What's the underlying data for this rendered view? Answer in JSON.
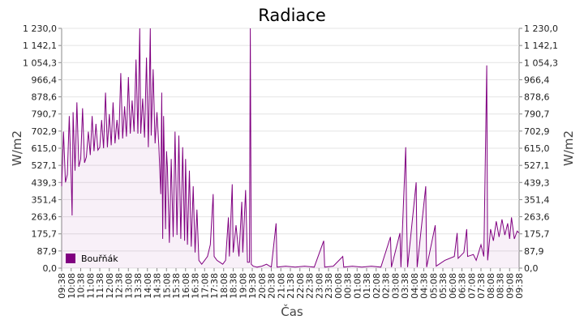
{
  "chart_data": {
    "type": "area",
    "title": "Radiace",
    "xlabel": "Čas",
    "ylabel": "W/m2",
    "ylabel_right": "W/m2",
    "ylim": [
      0,
      1230
    ],
    "yticks": [
      "1 230,0",
      "1 142,1",
      "1 054,3",
      "966,4",
      "878,6",
      "790,7",
      "702,9",
      "615,0",
      "527,1",
      "439,3",
      "351,4",
      "263,6",
      "175,7",
      "87,9",
      "0,0"
    ],
    "ytick_values": [
      1230,
      1142.1,
      1054.3,
      966.4,
      878.6,
      790.7,
      702.9,
      615.0,
      527.1,
      439.3,
      351.4,
      263.6,
      175.7,
      87.9,
      0
    ],
    "x_tick_labels": [
      "09:38",
      "10:08",
      "10:38",
      "11:08",
      "11:38",
      "12:08",
      "12:38",
      "13:08",
      "13:38",
      "14:08",
      "14:38",
      "15:08",
      "15:38",
      "16:08",
      "16:38",
      "17:08",
      "17:38",
      "18:08",
      "18:38",
      "19:08",
      "19:38",
      "20:08",
      "20:38",
      "21:08",
      "21:38",
      "22:08",
      "22:38",
      "23:08",
      "23:38",
      "00:08",
      "00:38",
      "01:08",
      "01:38",
      "02:08",
      "02:38",
      "03:08",
      "03:38",
      "04:08",
      "04:38",
      "05:08",
      "05:38",
      "06:08",
      "06:38",
      "07:08",
      "07:38",
      "08:08",
      "08:38",
      "09:08",
      "09:38"
    ],
    "grid": true,
    "legend_position": "bottom-left",
    "series": [
      {
        "name": "Bouřňák",
        "color": "#800080",
        "points": [
          [
            0,
            420
          ],
          [
            0.2,
            700
          ],
          [
            0.4,
            440
          ],
          [
            0.6,
            480
          ],
          [
            0.8,
            780
          ],
          [
            1,
            460
          ],
          [
            1.1,
            270
          ],
          [
            1.2,
            800
          ],
          [
            1.4,
            500
          ],
          [
            1.6,
            850
          ],
          [
            1.8,
            520
          ],
          [
            2,
            560
          ],
          [
            2.2,
            820
          ],
          [
            2.4,
            540
          ],
          [
            2.6,
            570
          ],
          [
            2.8,
            700
          ],
          [
            3,
            580
          ],
          [
            3.2,
            780
          ],
          [
            3.4,
            600
          ],
          [
            3.6,
            740
          ],
          [
            3.8,
            605
          ],
          [
            4,
            620
          ],
          [
            4.2,
            760
          ],
          [
            4.4,
            615
          ],
          [
            4.6,
            900
          ],
          [
            4.8,
            620
          ],
          [
            5,
            790
          ],
          [
            5.2,
            630
          ],
          [
            5.4,
            850
          ],
          [
            5.6,
            640
          ],
          [
            5.8,
            760
          ],
          [
            6,
            660
          ],
          [
            6.2,
            1000
          ],
          [
            6.4,
            665
          ],
          [
            6.6,
            830
          ],
          [
            6.8,
            675
          ],
          [
            7,
            980
          ],
          [
            7.2,
            690
          ],
          [
            7.4,
            860
          ],
          [
            7.6,
            700
          ],
          [
            7.8,
            1070
          ],
          [
            8,
            690
          ],
          [
            8.2,
            1230
          ],
          [
            8.3,
            690
          ],
          [
            8.5,
            870
          ],
          [
            8.7,
            670
          ],
          [
            8.9,
            1080
          ],
          [
            9.1,
            620
          ],
          [
            9.3,
            1230
          ],
          [
            9.4,
            680
          ],
          [
            9.6,
            1020
          ],
          [
            9.8,
            640
          ],
          [
            10,
            800
          ],
          [
            10.2,
            630
          ],
          [
            10.4,
            380
          ],
          [
            10.5,
            900
          ],
          [
            10.6,
            150
          ],
          [
            10.7,
            780
          ],
          [
            10.9,
            200
          ],
          [
            11,
            600
          ],
          [
            11.1,
            520
          ],
          [
            11.3,
            130
          ],
          [
            11.5,
            560
          ],
          [
            11.7,
            160
          ],
          [
            11.9,
            700
          ],
          [
            12.1,
            170
          ],
          [
            12.3,
            680
          ],
          [
            12.5,
            150
          ],
          [
            12.7,
            620
          ],
          [
            12.9,
            140
          ],
          [
            13,
            560
          ],
          [
            13.2,
            120
          ],
          [
            13.4,
            500
          ],
          [
            13.6,
            110
          ],
          [
            13.8,
            420
          ],
          [
            14,
            80
          ],
          [
            14.2,
            300
          ],
          [
            14.4,
            40
          ],
          [
            14.7,
            20
          ],
          [
            15,
            40
          ],
          [
            15.3,
            60
          ],
          [
            15.6,
            120
          ],
          [
            15.9,
            380
          ],
          [
            16,
            60
          ],
          [
            16.3,
            40
          ],
          [
            16.6,
            30
          ],
          [
            16.9,
            20
          ],
          [
            17.2,
            40
          ],
          [
            17.5,
            260
          ],
          [
            17.6,
            60
          ],
          [
            17.9,
            430
          ],
          [
            18,
            80
          ],
          [
            18.3,
            220
          ],
          [
            18.6,
            60
          ],
          [
            18.9,
            340
          ],
          [
            19,
            80
          ],
          [
            19.3,
            400
          ],
          [
            19.5,
            30
          ],
          [
            19.7,
            30
          ],
          [
            19.8,
            1230
          ],
          [
            19.9,
            20
          ],
          [
            20.1,
            10
          ],
          [
            20.5,
            5
          ],
          [
            21,
            10
          ],
          [
            21.5,
            20
          ],
          [
            22,
            5
          ],
          [
            22.5,
            230
          ],
          [
            22.6,
            5
          ],
          [
            23.5,
            10
          ],
          [
            24.5,
            5
          ],
          [
            25.5,
            10
          ],
          [
            26.5,
            5
          ],
          [
            27.5,
            140
          ],
          [
            27.6,
            5
          ],
          [
            28.5,
            10
          ],
          [
            29.5,
            60
          ],
          [
            29.6,
            5
          ],
          [
            30.5,
            10
          ],
          [
            31.5,
            5
          ],
          [
            32.5,
            10
          ],
          [
            33.5,
            5
          ],
          [
            34.5,
            160
          ],
          [
            34.6,
            5
          ],
          [
            35.5,
            180
          ],
          [
            35.6,
            5
          ],
          [
            36.1,
            620
          ],
          [
            36.2,
            240
          ],
          [
            36.3,
            5
          ],
          [
            37.2,
            440
          ],
          [
            37.3,
            5
          ],
          [
            38.2,
            420
          ],
          [
            38.3,
            5
          ],
          [
            39.2,
            220
          ],
          [
            39.3,
            10
          ],
          [
            40.2,
            40
          ],
          [
            41.2,
            60
          ],
          [
            41.5,
            180
          ],
          [
            41.6,
            50
          ],
          [
            42.2,
            80
          ],
          [
            42.5,
            200
          ],
          [
            42.6,
            60
          ],
          [
            43.2,
            70
          ],
          [
            43.5,
            40
          ],
          [
            44,
            120
          ],
          [
            44.3,
            60
          ],
          [
            44.6,
            1040
          ],
          [
            44.7,
            40
          ],
          [
            45,
            200
          ],
          [
            45.3,
            140
          ],
          [
            45.6,
            240
          ],
          [
            45.9,
            160
          ],
          [
            46.2,
            250
          ],
          [
            46.5,
            170
          ],
          [
            46.8,
            230
          ],
          [
            47,
            150
          ],
          [
            47.2,
            260
          ],
          [
            47.5,
            150
          ],
          [
            47.8,
            190
          ],
          [
            48,
            180
          ]
        ]
      }
    ]
  }
}
